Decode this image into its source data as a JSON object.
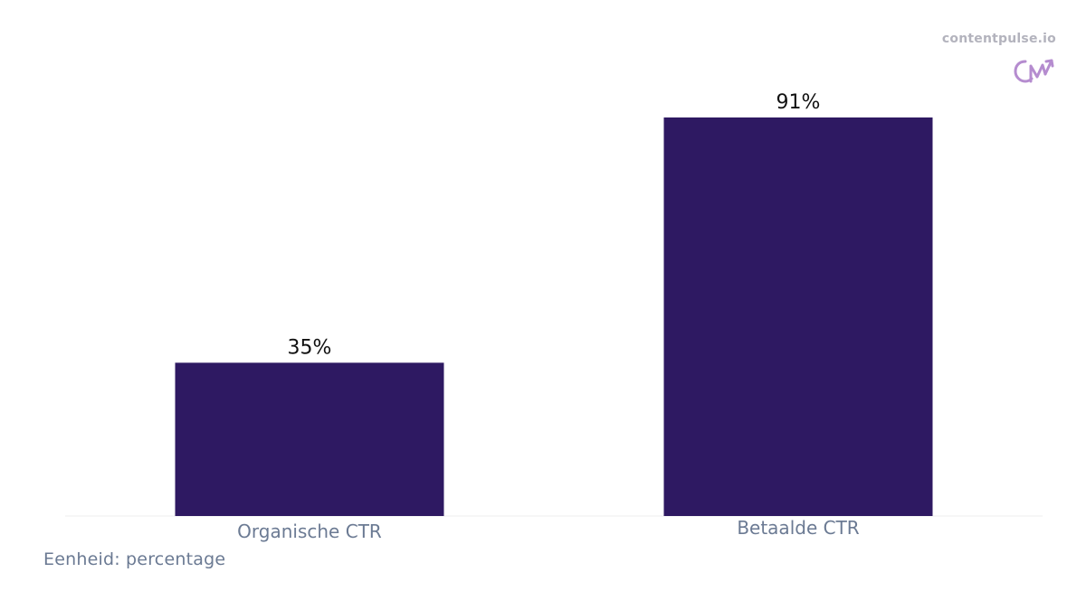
{
  "brand": {
    "name": "contentpulse.io",
    "logo_icon": "cp-logo-icon",
    "logo_color": "#b58ccf"
  },
  "unit_note": "Eenheid: percentage",
  "colors": {
    "bar": "#2e1962",
    "value_label": "#111111",
    "tick_label": "#6b7a93",
    "baseline": "#eeeeee"
  },
  "chart_data": {
    "type": "bar",
    "categories": [
      "Organische CTR",
      "Betaalde CTR"
    ],
    "values": [
      35,
      91
    ],
    "value_labels": [
      "35%",
      "91%"
    ],
    "title": "",
    "xlabel": "",
    "ylabel": "",
    "ylim": [
      0,
      91
    ],
    "grid": false,
    "legend": "none"
  }
}
